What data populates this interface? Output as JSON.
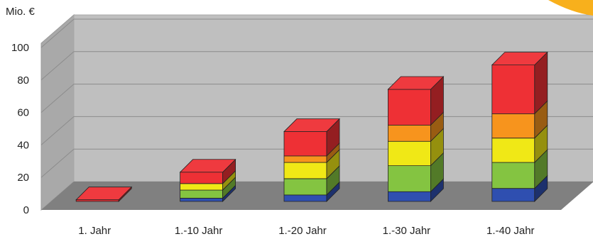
{
  "chart_data": {
    "type": "bar",
    "stacked": true,
    "three_d": true,
    "title": "",
    "xlabel": "",
    "ylabel": "Mio. €",
    "ylim": [
      0,
      100
    ],
    "yticks": [
      "0",
      "20",
      "40",
      "60",
      "80",
      "100"
    ],
    "grid": true,
    "categories": [
      "1. Jahr",
      "1.-10 Jahr",
      "1.-20 Jahr",
      "1.-30 Jahr",
      "1.-40 Jahr"
    ],
    "series": [
      {
        "color": "#2f4fb0",
        "values": [
          0,
          2,
          4,
          6,
          8
        ]
      },
      {
        "color": "#84c441",
        "values": [
          0,
          5,
          10,
          16,
          16
        ]
      },
      {
        "color": "#f0e816",
        "values": [
          0,
          4,
          10,
          15,
          15
        ]
      },
      {
        "color": "#f7941d",
        "values": [
          0,
          0,
          4,
          10,
          15
        ]
      },
      {
        "color": "#ee3035",
        "values": [
          1,
          7,
          15,
          22,
          30
        ]
      }
    ],
    "colors": {
      "back_wall": "#bfbfbf",
      "side_wall": "#a9a9a9",
      "floor": "#808080",
      "grid": "#8c8c8c",
      "corner_accent": "#f8b01c"
    }
  }
}
